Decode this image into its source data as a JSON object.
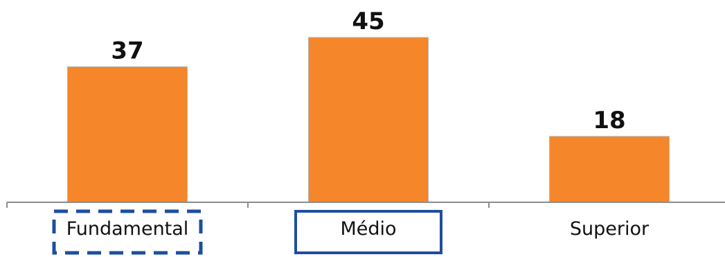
{
  "chart_data": {
    "type": "bar",
    "categories": [
      "Fundamental",
      "Médio",
      "Superior"
    ],
    "values": [
      37,
      45,
      18
    ],
    "title": "",
    "xlabel": "",
    "ylabel": "",
    "ylim": [
      0,
      45
    ],
    "grid": false,
    "legend": "none",
    "bar_color": "#F5862A",
    "highlights": [
      {
        "category": "Fundamental",
        "style": "dashed",
        "color": "#1F4E9E"
      },
      {
        "category": "Médio",
        "style": "solid",
        "color": "#1F4E9E"
      }
    ]
  }
}
